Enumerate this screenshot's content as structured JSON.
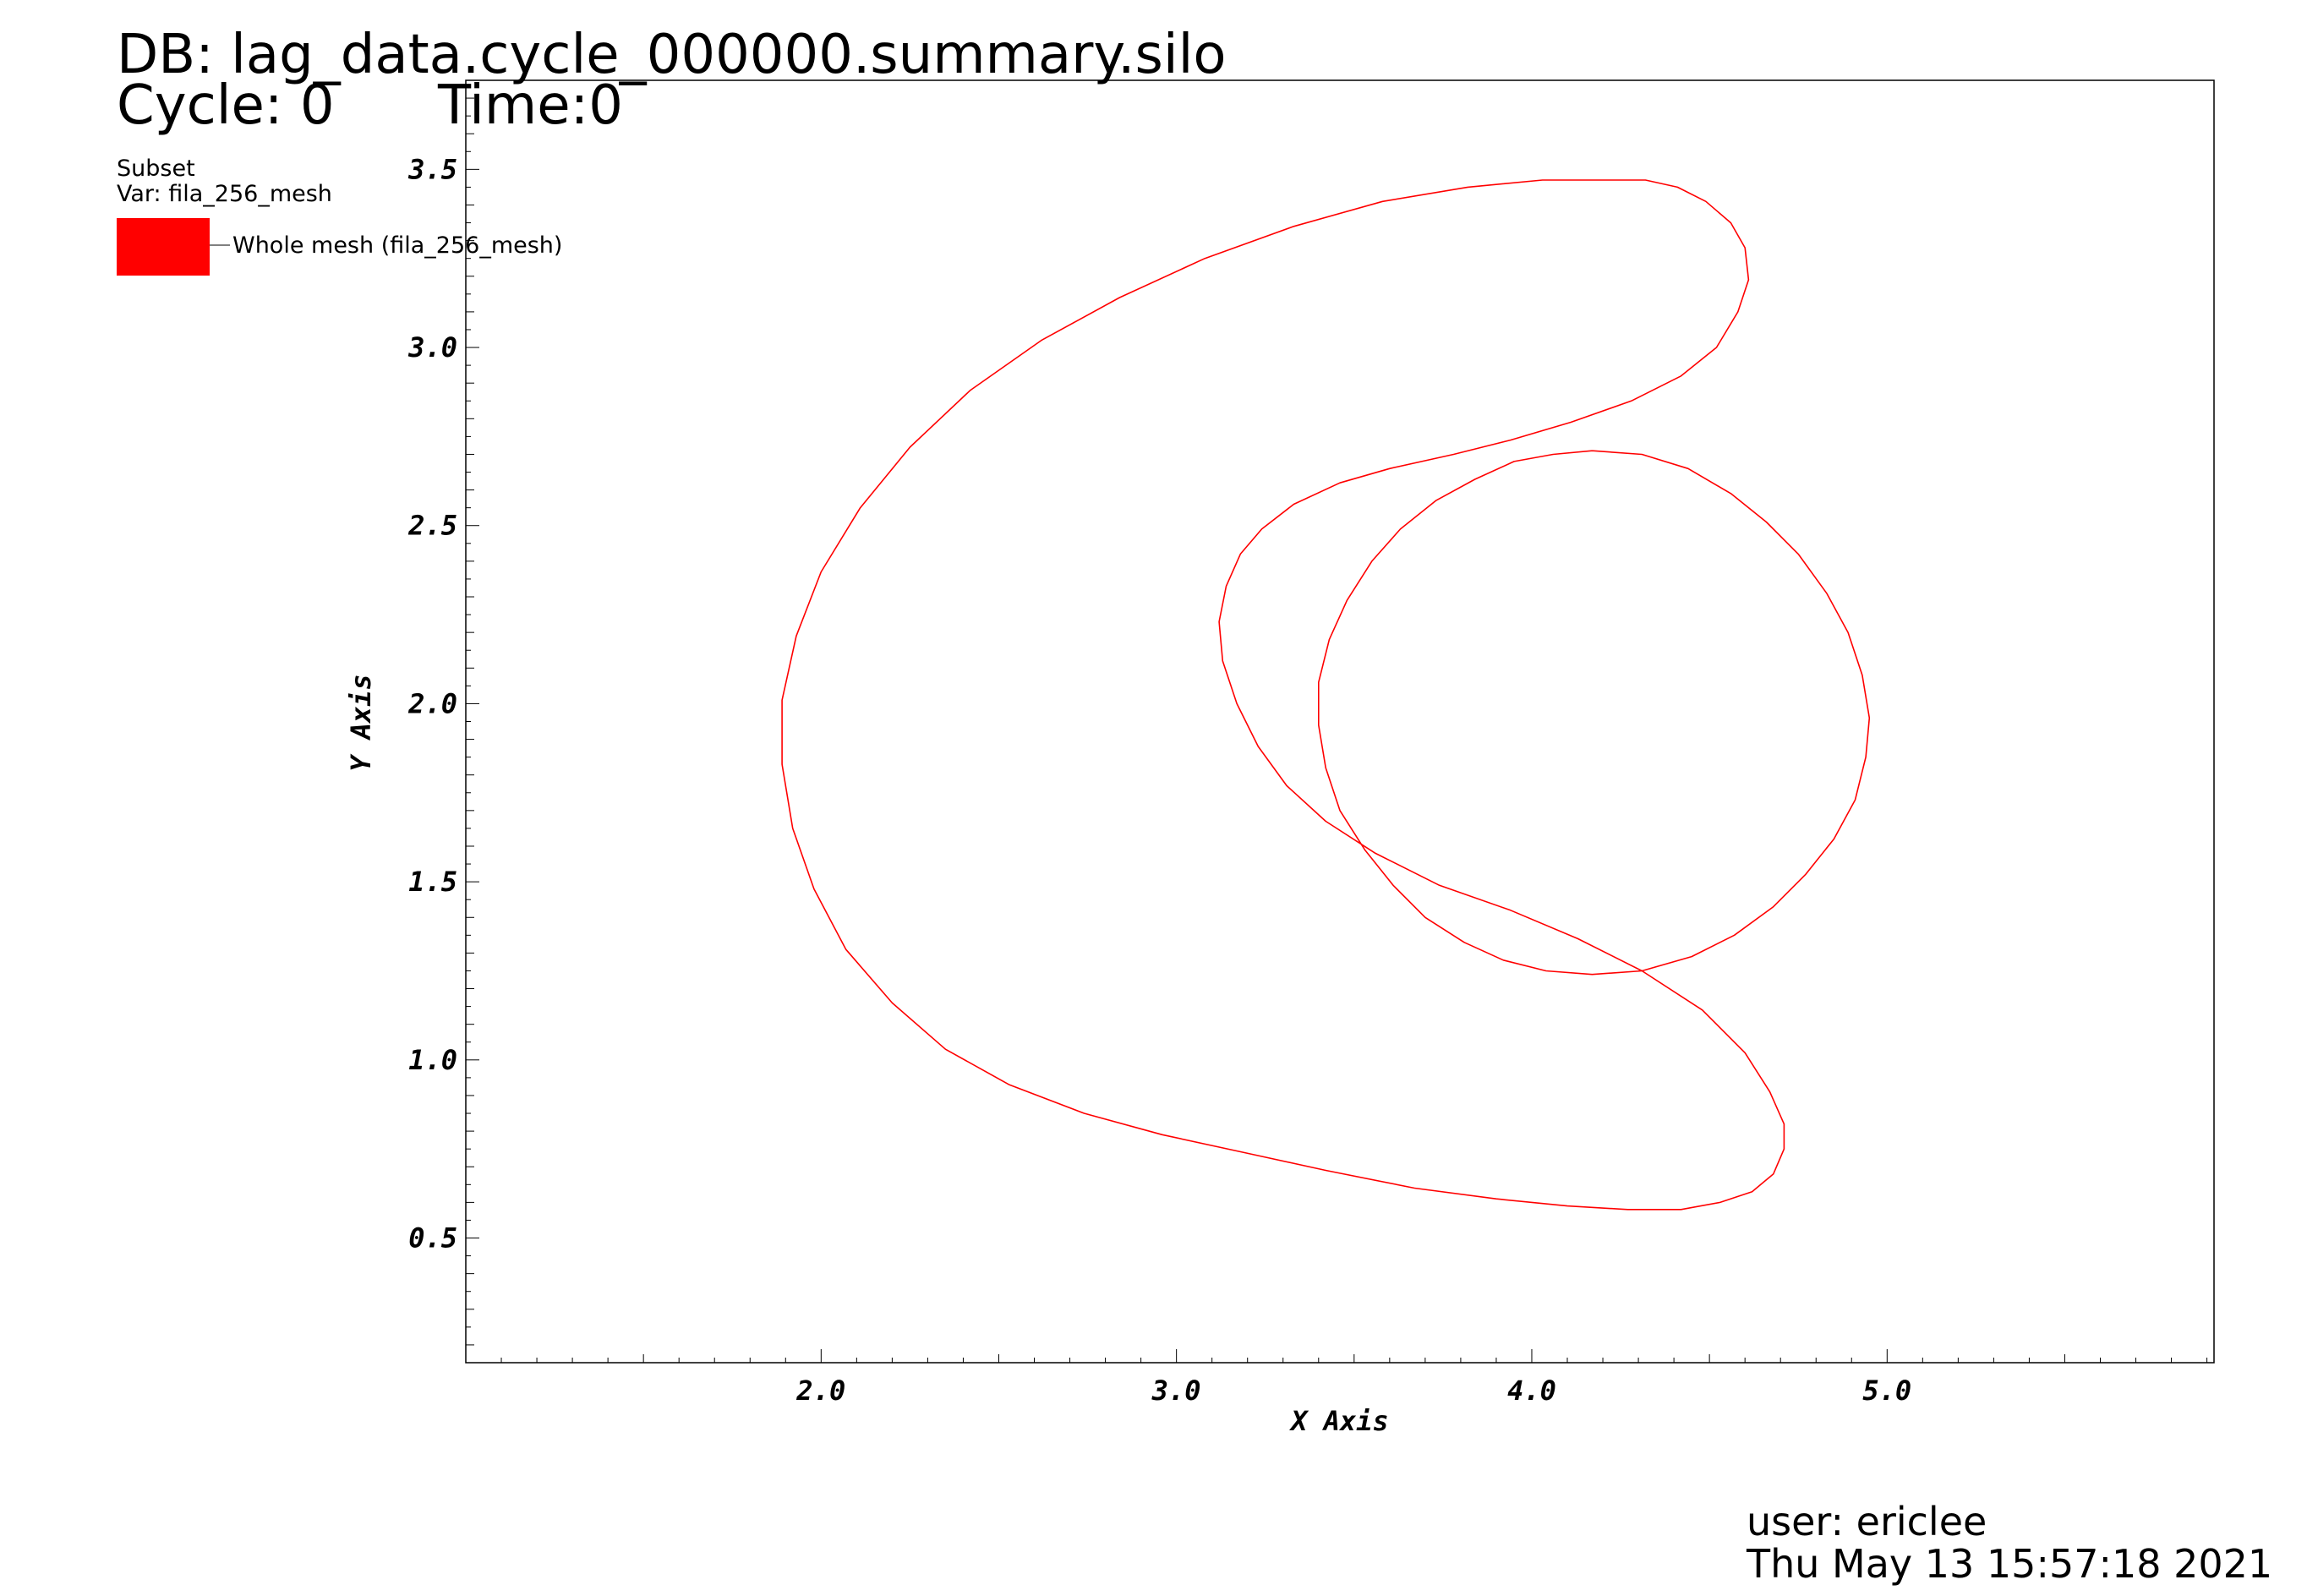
{
  "header": {
    "db": "DB: lag_data.cycle_000000.summary.silo",
    "cycle": "Cycle: 0",
    "time": "Time:0"
  },
  "legend": {
    "plot_type": "Subset",
    "var": "Var: fila_256_mesh",
    "entry": "Whole mesh (fila_256_mesh)",
    "swatch_color": "#ff0000"
  },
  "footer": {
    "user": "user: ericlee",
    "date": "Thu May 13 15:57:18 2021"
  },
  "chart_data": {
    "type": "line",
    "xlabel": "X Axis",
    "ylabel": "Y Axis",
    "xlim": [
      1.0,
      5.92
    ],
    "ylim": [
      0.15,
      3.75
    ],
    "xticks": [
      "2.0",
      "3.0",
      "4.0",
      "5.0"
    ],
    "yticks": [
      "0.5",
      "1.0",
      "1.5",
      "2.0",
      "2.5",
      "3.0",
      "3.5"
    ],
    "grid": false,
    "line_color": "#ff0000",
    "series": [
      {
        "x": [
          4.17,
          4.31,
          4.44,
          4.56,
          4.66,
          4.75,
          4.83,
          4.89,
          4.93,
          4.95,
          4.94,
          4.91,
          4.85,
          4.77,
          4.68,
          4.57,
          4.45,
          4.31,
          4.17,
          4.04,
          3.92,
          3.81,
          3.7,
          3.61,
          3.53,
          3.46,
          3.42,
          3.4,
          3.4,
          3.43,
          3.48,
          3.55,
          3.63,
          3.73,
          3.84,
          3.95,
          4.06,
          4.17
        ],
        "y": [
          2.71,
          2.7,
          2.66,
          2.59,
          2.51,
          2.42,
          2.31,
          2.2,
          2.08,
          1.96,
          1.85,
          1.73,
          1.62,
          1.52,
          1.43,
          1.35,
          1.29,
          1.25,
          1.24,
          1.25,
          1.28,
          1.33,
          1.4,
          1.49,
          1.59,
          1.7,
          1.82,
          1.94,
          2.06,
          2.18,
          2.29,
          2.4,
          2.49,
          2.57,
          2.63,
          2.68,
          2.7,
          2.71
        ]
      },
      {
        "x": [
          4.22,
          4.32,
          4.41,
          4.49,
          4.56,
          4.6,
          4.61,
          4.58,
          4.52,
          4.42,
          4.28,
          4.11,
          3.94,
          3.78,
          3.6,
          3.46,
          3.33,
          3.24,
          3.18,
          3.14,
          3.12,
          3.13,
          3.17,
          3.23,
          3.31,
          3.42,
          3.56,
          3.74,
          3.94,
          4.13,
          4.31,
          4.48,
          4.6,
          4.67,
          4.71,
          4.71,
          4.68,
          4.62,
          4.53,
          4.42,
          4.27,
          4.1,
          3.9,
          3.67,
          3.42,
          3.19,
          2.96,
          2.74,
          2.53,
          2.35,
          2.2,
          2.07,
          1.98,
          1.92,
          1.89,
          1.89,
          1.93,
          2.0,
          2.11,
          2.25,
          2.42,
          2.62,
          2.84,
          3.08,
          3.33,
          3.58,
          3.82,
          4.03,
          4.22
        ],
        "y": [
          3.47,
          3.47,
          3.45,
          3.41,
          3.35,
          3.28,
          3.19,
          3.1,
          3.0,
          2.92,
          2.85,
          2.79,
          2.74,
          2.7,
          2.66,
          2.62,
          2.56,
          2.49,
          2.42,
          2.33,
          2.23,
          2.12,
          2.0,
          1.88,
          1.77,
          1.67,
          1.58,
          1.49,
          1.42,
          1.34,
          1.25,
          1.14,
          1.02,
          0.91,
          0.82,
          0.75,
          0.68,
          0.63,
          0.6,
          0.58,
          0.58,
          0.59,
          0.61,
          0.64,
          0.69,
          0.74,
          0.79,
          0.85,
          0.93,
          1.03,
          1.16,
          1.31,
          1.48,
          1.65,
          1.83,
          2.01,
          2.19,
          2.37,
          2.55,
          2.72,
          2.88,
          3.02,
          3.14,
          3.25,
          3.34,
          3.41,
          3.45,
          3.47,
          3.47
        ]
      }
    ]
  }
}
